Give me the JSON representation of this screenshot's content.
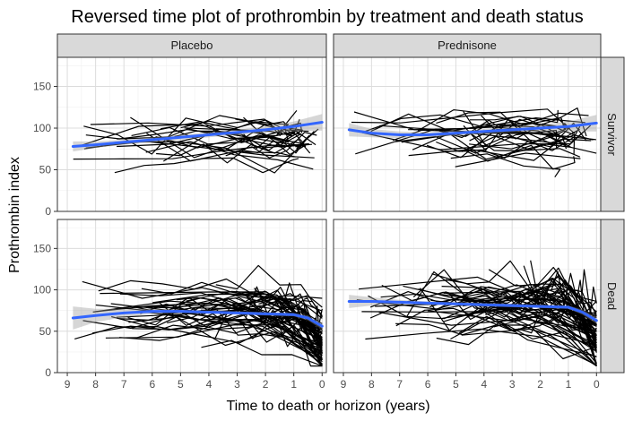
{
  "chart_data": {
    "type": "line",
    "title": "Reversed time plot of prothrombin by treatment and death status",
    "xlabel": "Time to death or horizon (years)",
    "ylabel": "Prothrombin index",
    "xlim": [
      9.35,
      -0.15
    ],
    "ylim": [
      0,
      185
    ],
    "x_ticks": [
      9,
      8,
      7,
      6,
      5,
      4,
      3,
      2,
      1,
      0
    ],
    "y_ticks": [
      0,
      50,
      100,
      150
    ],
    "columns": [
      "Placebo",
      "Prednisone"
    ],
    "rows": [
      "Survivor",
      "Dead"
    ],
    "panels": [
      {
        "treatment": "Placebo",
        "status": "Survivor",
        "n_subjects": 30,
        "start_min": 2.5,
        "start_max": 8.8,
        "base": 88,
        "spread": 18,
        "smooth": {
          "x": [
            8.8,
            8,
            7,
            6,
            5,
            4,
            3,
            2,
            1,
            0
          ],
          "y": [
            78,
            80,
            83,
            86,
            89,
            92,
            95,
            98,
            102,
            107
          ]
        },
        "band_halfwidth": [
          6,
          4,
          3,
          3,
          3,
          3,
          3,
          4,
          6,
          10
        ]
      },
      {
        "treatment": "Prednisone",
        "status": "Survivor",
        "n_subjects": 30,
        "start_min": 3.0,
        "start_max": 8.8,
        "base": 92,
        "spread": 20,
        "smooth": {
          "x": [
            8.8,
            8,
            7,
            6,
            5,
            4,
            3,
            2,
            1,
            0
          ],
          "y": [
            98,
            94,
            92,
            92,
            94,
            96,
            98,
            100,
            102,
            106
          ]
        },
        "band_halfwidth": [
          8,
          5,
          4,
          3,
          3,
          3,
          3,
          4,
          6,
          10
        ]
      },
      {
        "treatment": "Placebo",
        "status": "Dead",
        "n_subjects": 70,
        "start_min": 0.4,
        "start_max": 8.8,
        "base": 75,
        "spread": 22,
        "smooth": {
          "x": [
            8.8,
            8,
            7,
            6,
            5,
            4,
            3,
            2,
            1,
            0.5,
            0
          ],
          "y": [
            66,
            69,
            72,
            74,
            74,
            73,
            72,
            71,
            70,
            66,
            56
          ]
        },
        "band_halfwidth": [
          14,
          8,
          5,
          3,
          2,
          2,
          2,
          2,
          2,
          3,
          4
        ]
      },
      {
        "treatment": "Prednisone",
        "status": "Dead",
        "n_subjects": 70,
        "start_min": 0.4,
        "start_max": 8.8,
        "base": 82,
        "spread": 24,
        "smooth": {
          "x": [
            8.8,
            8,
            7,
            6,
            5,
            4,
            3,
            2,
            1,
            0.5,
            0
          ],
          "y": [
            86,
            86,
            85,
            84,
            83,
            82,
            81,
            80,
            79,
            73,
            63
          ]
        },
        "band_halfwidth": [
          8,
          5,
          3,
          2,
          2,
          2,
          2,
          2,
          2,
          3,
          4
        ]
      }
    ],
    "colors": {
      "line": "#000000",
      "smooth": "#3366ff",
      "band": "#999999",
      "panel_bg": "#ffffff",
      "grid_major": "#dcdcdc",
      "grid_minor": "#f0f0f0",
      "strip_bg": "#d9d9d9",
      "border": "#333333"
    }
  }
}
